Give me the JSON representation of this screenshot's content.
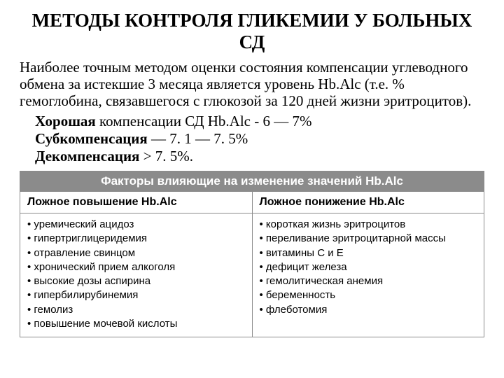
{
  "title": "МЕТОДЫ КОНТРОЛЯ ГЛИКЕМИИ У БОЛЬНЫХ СД",
  "paragraph": "Наиболее точным методом оценки состояния компенсации углеводного обмена за истекшие 3 месяца является уровень Hb.Alc (т.е. % гемоглобина, связавшегося с глюкозой за 120 дней жизни эритроцитов).",
  "lines": {
    "l1_bold": "Хорошая",
    "l1_rest": " компенсации СД  Hb.Alc - 6 — 7%",
    "l2_bold": "Субкомпенсация",
    "l2_rest": " — 7. 1 — 7. 5%",
    "l3_bold": "Декомпенсация",
    "l3_rest": " > 7. 5%."
  },
  "table": {
    "banner": "Факторы влияющие на изменение значений Hb.Alc",
    "col1_head": "Ложное повышение Hb.Alc",
    "col2_head": "Ложное понижение Hb.Alc",
    "col1_items": [
      "уремический ацидоз",
      "гипертриглицеридемия",
      "отравление свинцом",
      "хронический прием алкоголя",
      "высокие дозы аспирина",
      "гипербилирубинемия",
      "гемолиз",
      "повышение мочевой кислоты"
    ],
    "col2_items": [
      "короткая жизнь эритроцитов",
      "переливание эритроцитарной массы",
      "витамины С и Е",
      "дефицит железа",
      "гемолитическая анемия",
      "беременность",
      "флеботомия"
    ]
  },
  "colors": {
    "banner_bg": "#8b8b8b",
    "banner_fg": "#ffffff",
    "border": "#8b8b8b",
    "text": "#000000",
    "page_bg": "#ffffff"
  }
}
